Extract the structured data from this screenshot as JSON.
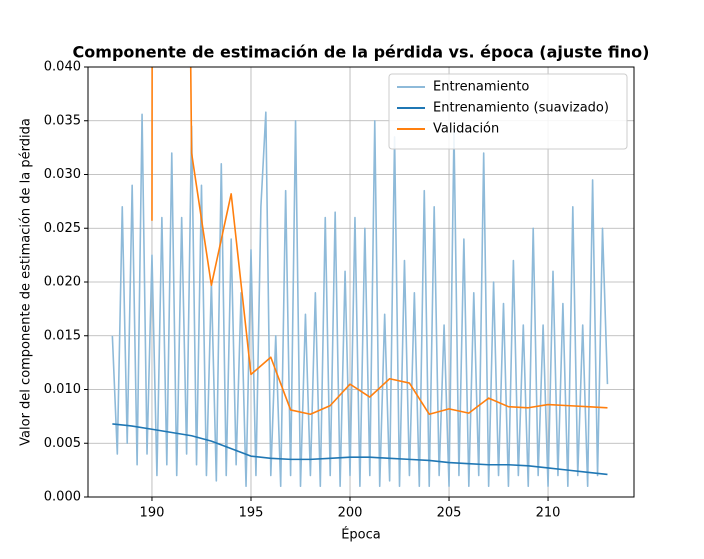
{
  "chart_data": {
    "type": "line",
    "title": "Componente de estimación de la pérdida vs. época (ajuste fino)",
    "xlabel": "Época",
    "ylabel": "Valor del componente de estimación de la pérdida",
    "xlim": [
      186.77,
      214.34
    ],
    "ylim": [
      0,
      0.04
    ],
    "xticks": [
      190,
      195,
      200,
      205,
      210
    ],
    "yticks": [
      {
        "value": 0,
        "label": "0.000"
      },
      {
        "value": 0.005,
        "label": "0.005"
      },
      {
        "value": 0.01,
        "label": "0.010"
      },
      {
        "value": 0.015,
        "label": "0.015"
      },
      {
        "value": 0.02,
        "label": "0.020"
      },
      {
        "value": 0.025,
        "label": "0.025"
      },
      {
        "value": 0.03,
        "label": "0.030"
      },
      {
        "value": 0.035,
        "label": "0.035"
      },
      {
        "value": 0.04,
        "label": "0.040"
      }
    ],
    "grid": true,
    "legend": "upper right",
    "series": [
      {
        "name": "Entrenamiento",
        "color": "#8ebad9",
        "x": [
          188,
          188.25,
          188.5,
          188.75,
          189,
          189.25,
          189.5,
          189.75,
          190,
          190.25,
          190.5,
          190.75,
          191,
          191.25,
          191.5,
          191.75,
          192,
          192.25,
          192.5,
          192.75,
          193,
          193.25,
          193.5,
          193.75,
          194,
          194.25,
          194.5,
          194.75,
          195,
          195.25,
          195.5,
          195.75,
          196,
          196.25,
          196.5,
          196.75,
          197,
          197.25,
          197.5,
          197.75,
          198,
          198.25,
          198.5,
          198.75,
          199,
          199.25,
          199.5,
          199.75,
          200,
          200.25,
          200.5,
          200.75,
          201,
          201.25,
          201.5,
          201.75,
          202,
          202.25,
          202.5,
          202.75,
          203,
          203.25,
          203.5,
          203.75,
          204,
          204.25,
          204.5,
          204.75,
          205,
          205.25,
          205.5,
          205.75,
          206,
          206.25,
          206.5,
          206.75,
          207,
          207.25,
          207.5,
          207.75,
          208,
          208.25,
          208.5,
          208.75,
          209,
          209.25,
          209.5,
          209.75,
          210,
          210.25,
          210.5,
          210.75,
          211,
          211.25,
          211.5,
          211.75,
          212,
          212.25,
          212.5,
          212.75,
          213
        ],
        "values": [
          0.015,
          0.004,
          0.027,
          0.005,
          0.029,
          0.003,
          0.0356,
          0.004,
          0.0225,
          0.002,
          0.026,
          0.003,
          0.032,
          0.002,
          0.026,
          0.004,
          0.0345,
          0.003,
          0.029,
          0.002,
          0.02,
          0.0015,
          0.031,
          0.002,
          0.024,
          0.003,
          0.019,
          0.001,
          0.023,
          0.002,
          0.027,
          0.0358,
          0.002,
          0.015,
          0.001,
          0.0285,
          0.002,
          0.035,
          0.001,
          0.017,
          0.002,
          0.019,
          0.001,
          0.026,
          0.002,
          0.0265,
          0.001,
          0.021,
          0.002,
          0.026,
          0.001,
          0.025,
          0.002,
          0.035,
          0.001,
          0.017,
          0.0015,
          0.0335,
          0.001,
          0.022,
          0.002,
          0.019,
          0.001,
          0.0285,
          0.001,
          0.027,
          0.002,
          0.016,
          0.001,
          0.034,
          0.002,
          0.024,
          0.001,
          0.019,
          0.002,
          0.032,
          0.001,
          0.02,
          0.002,
          0.018,
          0.001,
          0.022,
          0.002,
          0.016,
          0.001,
          0.025,
          0.002,
          0.016,
          0.001,
          0.021,
          0.002,
          0.018,
          0.001,
          0.027,
          0.002,
          0.016,
          0.001,
          0.0295,
          0.002,
          0.025,
          0.0105
        ]
      },
      {
        "name": "Entrenamiento (suavizado)",
        "color": "#1f77b4",
        "x": [
          188,
          189,
          190,
          191,
          192,
          193,
          194,
          195,
          196,
          197,
          198,
          199,
          200,
          201,
          202,
          203,
          204,
          205,
          206,
          207,
          208,
          209,
          210,
          211,
          212,
          213
        ],
        "values": [
          0.0068,
          0.0066,
          0.0063,
          0.006,
          0.0057,
          0.0052,
          0.0045,
          0.0038,
          0.0036,
          0.0035,
          0.0035,
          0.0036,
          0.0037,
          0.0037,
          0.0036,
          0.0035,
          0.0034,
          0.0032,
          0.0031,
          0.003,
          0.003,
          0.0029,
          0.0027,
          0.0025,
          0.0023,
          0.0021
        ]
      },
      {
        "name": "Validación",
        "color": "#ff7f0e",
        "x": [
          190,
          190.02,
          191.85,
          192,
          193,
          194,
          195,
          196,
          197,
          198,
          199,
          200,
          201,
          202,
          203,
          204,
          205,
          206,
          207,
          208,
          209,
          210,
          211,
          212,
          213
        ],
        "values": [
          0.0257,
          0.06,
          0.06,
          0.032,
          0.0197,
          0.0282,
          0.0114,
          0.013,
          0.0081,
          0.0077,
          0.0085,
          0.0105,
          0.0093,
          0.011,
          0.0106,
          0.0077,
          0.0082,
          0.0078,
          0.0092,
          0.0084,
          0.0083,
          0.0086,
          0.0085,
          0.0084,
          0.0083
        ]
      }
    ]
  }
}
